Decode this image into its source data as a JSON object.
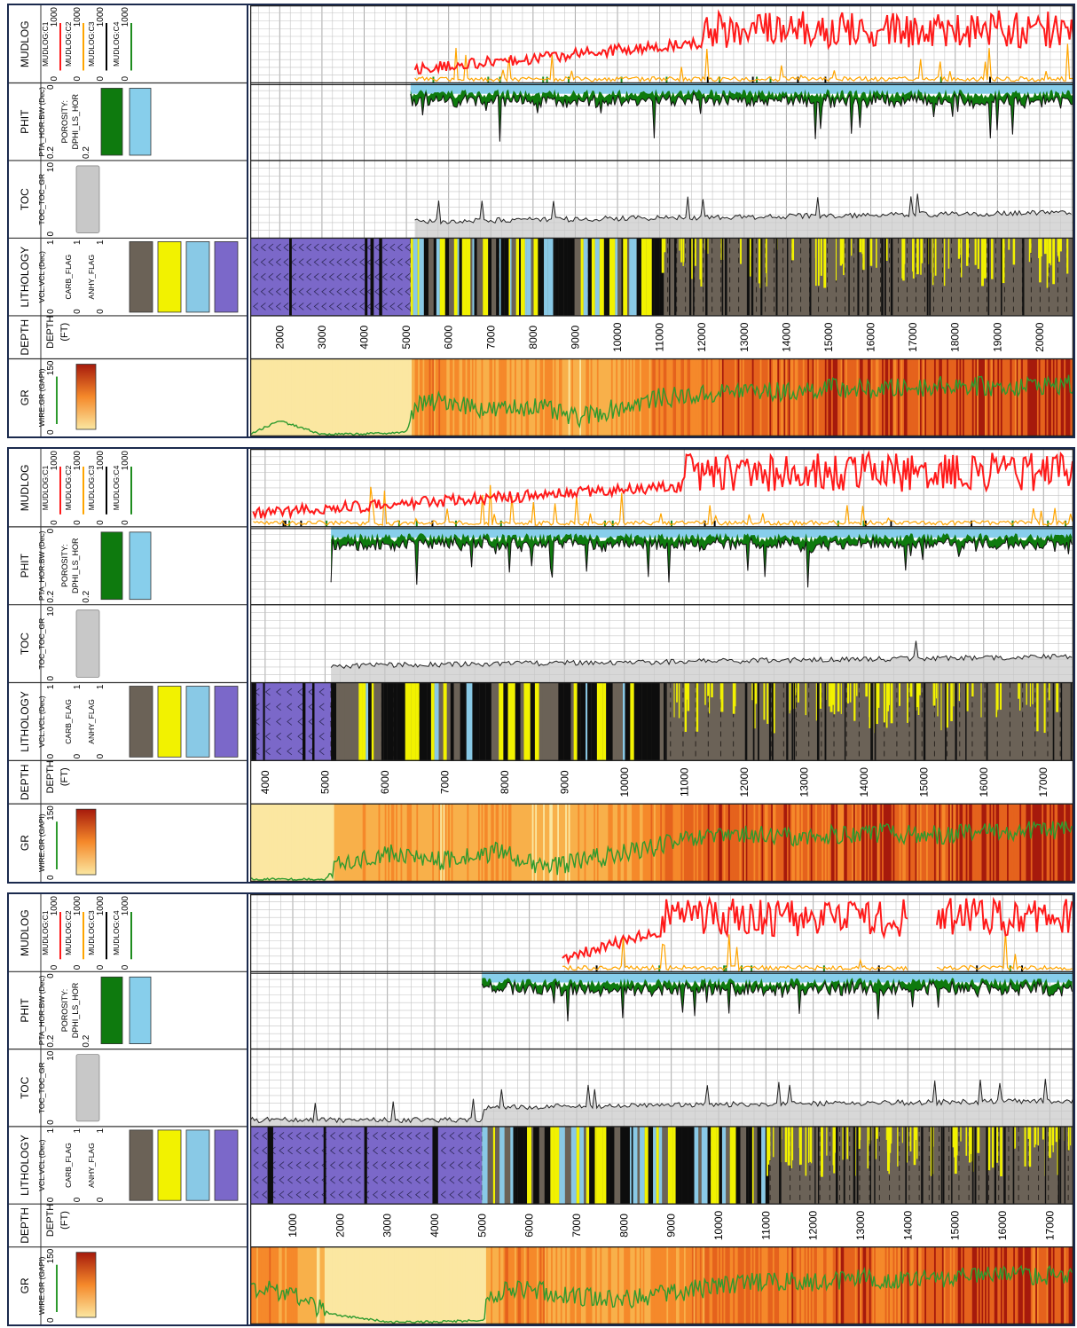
{
  "track_labels": {
    "mudlog": "MUDLOG",
    "phit": "PHIT",
    "toc": "TOC",
    "lithology": "LITHOLOGY",
    "depth": "DEPTH",
    "gr": "GR"
  },
  "curve_labels": {
    "mudlog_c1": "MUDLOG:C1",
    "mudlog_c2": "MUDLOG:C2",
    "mudlog_c3": "MUDLOG:C3",
    "mudlog_c4": "MUDLOG:C4",
    "mudlog_min": "0",
    "mudlog_max": "1000",
    "phit_curve": "PTA_HOR:BW (Dec)",
    "phit_min": "0.2",
    "phit_max": "0",
    "porosity": "POROSITY:",
    "dphi": "DPHI_LS_HOR",
    "phit_scale": "0.2",
    "toc_curve": "TOC_TOC_GR",
    "toc_min": "0",
    "toc_max": "10",
    "vcl_curve": "VCL:VCL (Dec)",
    "carb_flag": "CARB_FLAG",
    "anhy_flag": "ANHY_FLAG",
    "flag_min": "0",
    "flag_max": "1",
    "depth_unit": "(FT)",
    "gr_curve": "WIRE:GR (GAPI)",
    "gr_min": "0",
    "gr_max": "150"
  },
  "colors": {
    "frame": "#1b2a4e",
    "grid": "#c4c4c4",
    "c1": "#ff1a1a",
    "c2": "#ffa500",
    "c3": "#000000",
    "c4": "#1e8c1e",
    "phit_fill": "#87ceeb",
    "dphi_fill": "#0e7a0e",
    "toc_fill": "#c8c8c8",
    "shale": "#6b6257",
    "sand": "#f2f200",
    "limestone": "#89c9e6",
    "anhydrite": "#7b68c9",
    "gr_low": "#fbe7a1",
    "gr_mid": "#f5892a",
    "gr_high": "#a61a0c",
    "gr_line": "#2e9a2e"
  },
  "chart_data": [
    {
      "type": "well-log",
      "depth_ticks": [
        2000,
        3000,
        4000,
        5000,
        6000,
        7000,
        8000,
        9000,
        10000,
        11000,
        12000,
        13000,
        14000,
        15000,
        16000,
        17000,
        18000,
        19000,
        20000
      ],
      "depth_range": [
        1300,
        20800
      ],
      "anhydrite_interval": [
        1300,
        5100
      ],
      "interbedded_interval": [
        5100,
        11000
      ],
      "mudlog_start": 5200,
      "mudlog_high_from": 12000,
      "phit_start": 5100,
      "toc_start": 5200,
      "low_gr_interval": [
        1300,
        5100
      ],
      "gr_values": [
        {
          "depth": 1300,
          "gr": 5
        },
        {
          "depth": 2000,
          "gr": 30
        },
        {
          "depth": 3000,
          "gr": 4
        },
        {
          "depth": 4000,
          "gr": 5
        },
        {
          "depth": 5000,
          "gr": 8
        },
        {
          "depth": 5200,
          "gr": 60
        },
        {
          "depth": 6000,
          "gr": 70
        },
        {
          "depth": 7000,
          "gr": 50
        },
        {
          "depth": 8000,
          "gr": 60
        },
        {
          "depth": 9000,
          "gr": 35
        },
        {
          "depth": 10000,
          "gr": 55
        },
        {
          "depth": 11000,
          "gr": 75
        },
        {
          "depth": 12000,
          "gr": 80
        },
        {
          "depth": 13000,
          "gr": 90
        },
        {
          "depth": 14000,
          "gr": 85
        },
        {
          "depth": 15000,
          "gr": 95
        },
        {
          "depth": 16000,
          "gr": 90
        },
        {
          "depth": 17000,
          "gr": 95
        },
        {
          "depth": 18000,
          "gr": 100
        },
        {
          "depth": 19000,
          "gr": 95
        },
        {
          "depth": 20000,
          "gr": 100
        }
      ]
    },
    {
      "type": "well-log",
      "depth_ticks": [
        4000,
        5000,
        6000,
        7000,
        8000,
        9000,
        10000,
        11000,
        12000,
        13000,
        14000,
        15000,
        16000,
        17000
      ],
      "depth_range": [
        3750,
        17500
      ],
      "anhydrite_interval": [
        3750,
        5100
      ],
      "interbedded_interval": [
        5100,
        10600
      ],
      "mudlog_start": 3800,
      "mudlog_high_from": 11000,
      "phit_start": 5100,
      "toc_start": 5100,
      "low_gr_interval": [
        3750,
        5100
      ],
      "gr_values": [
        {
          "depth": 3800,
          "gr": 5
        },
        {
          "depth": 5000,
          "gr": 5
        },
        {
          "depth": 5200,
          "gr": 30
        },
        {
          "depth": 6000,
          "gr": 55
        },
        {
          "depth": 7000,
          "gr": 40
        },
        {
          "depth": 8000,
          "gr": 60
        },
        {
          "depth": 8600,
          "gr": 25
        },
        {
          "depth": 9000,
          "gr": 35
        },
        {
          "depth": 10000,
          "gr": 55
        },
        {
          "depth": 11000,
          "gr": 80
        },
        {
          "depth": 12000,
          "gr": 90
        },
        {
          "depth": 13000,
          "gr": 85
        },
        {
          "depth": 14000,
          "gr": 95
        },
        {
          "depth": 15000,
          "gr": 90
        },
        {
          "depth": 16000,
          "gr": 95
        },
        {
          "depth": 17000,
          "gr": 100
        }
      ]
    },
    {
      "type": "well-log",
      "depth_ticks": [
        1000,
        2000,
        3000,
        4000,
        5000,
        6000,
        7000,
        8000,
        9000,
        10000,
        11000,
        12000,
        13000,
        14000,
        15000,
        16000,
        17000
      ],
      "depth_range": [
        100,
        17500
      ],
      "anhydrite_interval": [
        100,
        5000
      ],
      "interbedded_interval": [
        5000,
        11000
      ],
      "mudlog_start": 6700,
      "mudlog_high_from": 8800,
      "mudlog_gap": [
        14000,
        14600
      ],
      "phit_start": 5000,
      "toc_start": 100,
      "low_gr_interval": [
        1700,
        5000
      ],
      "gr_values": [
        {
          "depth": 100,
          "gr": 70
        },
        {
          "depth": 1000,
          "gr": 60
        },
        {
          "depth": 1800,
          "gr": 20
        },
        {
          "depth": 3000,
          "gr": 5
        },
        {
          "depth": 4000,
          "gr": 5
        },
        {
          "depth": 5000,
          "gr": 8
        },
        {
          "depth": 5200,
          "gr": 60
        },
        {
          "depth": 6000,
          "gr": 70
        },
        {
          "depth": 7000,
          "gr": 55
        },
        {
          "depth": 8000,
          "gr": 50
        },
        {
          "depth": 9000,
          "gr": 60
        },
        {
          "depth": 10000,
          "gr": 75
        },
        {
          "depth": 11000,
          "gr": 85
        },
        {
          "depth": 12000,
          "gr": 80
        },
        {
          "depth": 13000,
          "gr": 90
        },
        {
          "depth": 14000,
          "gr": 85
        },
        {
          "depth": 15000,
          "gr": 90
        },
        {
          "depth": 16000,
          "gr": 95
        },
        {
          "depth": 17000,
          "gr": 95
        }
      ]
    }
  ]
}
